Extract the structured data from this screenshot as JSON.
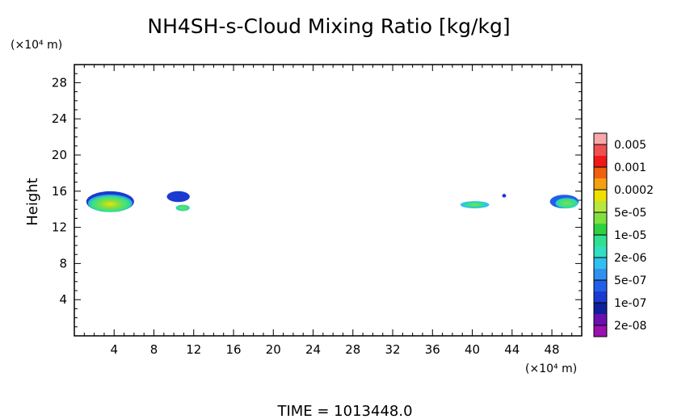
{
  "chart_data": {
    "type": "heatmap",
    "title": "NH4SH-s-Cloud Mixing Ratio [kg/kg]",
    "ylabel": "Height",
    "yunit": "(×10⁴ m)",
    "xunit": "(×10⁴ m)",
    "footer": "TIME  =  1013448.0",
    "xlim": [
      0,
      51
    ],
    "ylim": [
      0,
      30
    ],
    "x_ticks": [
      4,
      8,
      12,
      16,
      20,
      24,
      28,
      32,
      36,
      40,
      44,
      48
    ],
    "y_ticks": [
      4,
      8,
      12,
      16,
      20,
      24,
      28
    ],
    "colorbar": {
      "labels": [
        "0.005",
        "0.001",
        "0.0002",
        "5e-05",
        "1e-05",
        "2e-06",
        "5e-07",
        "1e-07",
        "2e-08"
      ],
      "colors": [
        "#f7a8a8",
        "#f05050",
        "#f01818",
        "#f06010",
        "#f5a010",
        "#f0e000",
        "#b8e83c",
        "#80e040",
        "#30d040",
        "#30e090",
        "#30e0c0",
        "#30c0f0",
        "#3090f0",
        "#2060e8",
        "#1a3ad0",
        "#10209a",
        "#6a10b0",
        "#9a10b0"
      ]
    },
    "clouds": [
      {
        "name": "cloud-1",
        "x": [
          1.2,
          6.0
        ],
        "y": [
          13.6,
          15.9
        ],
        "level": "5e-05"
      },
      {
        "name": "cloud-2",
        "x": [
          9.3,
          11.6
        ],
        "y": [
          14.8,
          16.0
        ],
        "level": "1e-07"
      },
      {
        "name": "cloud-3",
        "x": [
          10.2,
          11.6
        ],
        "y": [
          13.8,
          14.5
        ],
        "level": "1e-05"
      },
      {
        "name": "cloud-4",
        "x": [
          38.8,
          41.7
        ],
        "y": [
          14.1,
          14.9
        ],
        "level": "2e-06"
      },
      {
        "name": "cloud-5",
        "x": [
          43.0,
          43.4
        ],
        "y": [
          15.3,
          15.7
        ],
        "level": "1e-07"
      },
      {
        "name": "cloud-6",
        "x": [
          47.8,
          50.7
        ],
        "y": [
          14.1,
          15.6
        ],
        "level": "2e-06"
      }
    ]
  }
}
